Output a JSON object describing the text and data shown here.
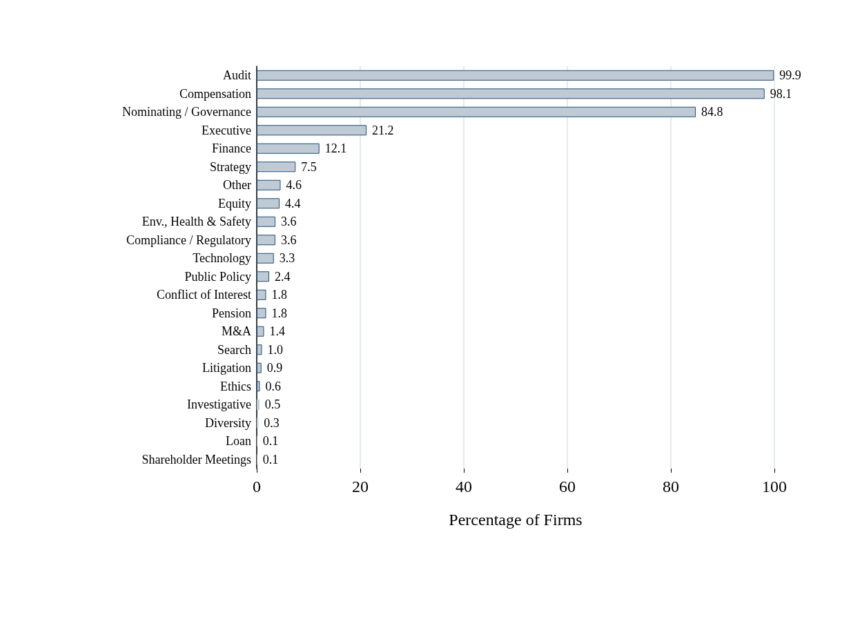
{
  "chart_data": {
    "type": "bar",
    "orientation": "horizontal",
    "xlabel": "Percentage of Firms",
    "categories": [
      "Audit",
      "Compensation",
      "Nominating / Governance",
      "Executive",
      "Finance",
      "Strategy",
      "Other",
      "Equity",
      "Env., Health & Safety",
      "Compliance / Regulatory",
      "Technology",
      "Public Policy",
      "Conflict of Interest",
      "Pension",
      "M&A",
      "Search",
      "Litigation",
      "Ethics",
      "Investigative",
      "Diversity",
      "Loan",
      "Shareholder Meetings"
    ],
    "values": [
      99.9,
      98.1,
      84.8,
      21.2,
      12.1,
      7.5,
      4.6,
      4.4,
      3.6,
      3.6,
      3.3,
      2.4,
      1.8,
      1.8,
      1.4,
      1.0,
      0.9,
      0.6,
      0.5,
      0.3,
      0.1,
      0.1
    ],
    "value_labels": [
      "99.9",
      "98.1",
      "84.8",
      "21.2",
      "12.1",
      "7.5",
      "4.6",
      "4.4",
      "3.6",
      "3.6",
      "3.3",
      "2.4",
      "1.8",
      "1.8",
      "1.4",
      "1.0",
      "0.9",
      "0.6",
      "0.5",
      "0.3",
      "0.1",
      "0.1"
    ],
    "color": "#bfcad5",
    "xlim": [
      0,
      100
    ],
    "xticks": [
      0,
      20,
      40,
      60,
      80,
      100
    ],
    "grid": "x"
  }
}
